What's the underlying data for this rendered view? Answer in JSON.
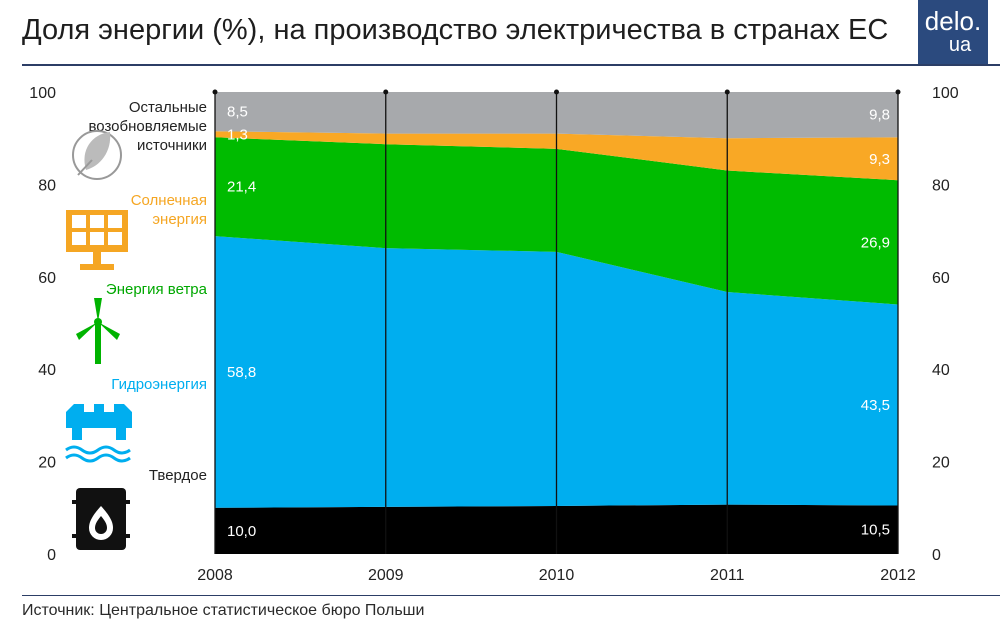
{
  "header": {
    "title": "Доля энергии (%), на производство электричества в странах ЕС",
    "logo_line1": "delo.",
    "logo_line2": "ua"
  },
  "footer": {
    "source": "Источник: Центральное статистическое бюро Польши"
  },
  "chart_data": {
    "type": "area",
    "stacked": true,
    "x": [
      "2008",
      "2009",
      "2010",
      "2011",
      "2012"
    ],
    "ylim": [
      0,
      100
    ],
    "yticks": [
      0,
      20,
      40,
      60,
      80,
      100
    ],
    "ytick_labels": [
      "0",
      "20",
      "40",
      "60",
      "80",
      "100"
    ],
    "y_axis_sides": [
      "left",
      "right"
    ],
    "grid": "vertical lines at each year",
    "series": [
      {
        "name": "Твердое",
        "color": "#000000",
        "label_color": "#222222",
        "icon": "oil-barrel-icon",
        "values": [
          10.0,
          10.2,
          10.4,
          10.7,
          10.5
        ]
      },
      {
        "name": "Гидроэнергия",
        "color": "#00aeef",
        "label_color": "#00aeef",
        "icon": "hydro-dam-icon",
        "values": [
          58.8,
          56.0,
          55.0,
          46.0,
          43.5
        ]
      },
      {
        "name": "Энергия ветра",
        "color": "#00bb00",
        "label_color": "#00a800",
        "icon": "wind-turbine-icon",
        "values": [
          21.4,
          22.5,
          22.3,
          26.3,
          26.9
        ]
      },
      {
        "name": "Солнечная энергия",
        "color": "#f9a825",
        "label_color": "#f5a623",
        "icon": "solar-panel-icon",
        "values": [
          1.3,
          2.3,
          3.3,
          7.0,
          9.3
        ]
      },
      {
        "name": "Остальные возобновляемые источники",
        "color": "#a7a9ac",
        "label_color": "#222222",
        "icon": "leaf-plug-icon",
        "values": [
          8.5,
          9.0,
          9.0,
          10.0,
          9.8
        ]
      }
    ],
    "data_labels": [
      {
        "series": 0,
        "at": "2008",
        "text": "10,0"
      },
      {
        "series": 0,
        "at": "2012",
        "text": "10,5"
      },
      {
        "series": 1,
        "at": "2008",
        "text": "58,8"
      },
      {
        "series": 1,
        "at": "2012",
        "text": "43,5"
      },
      {
        "series": 2,
        "at": "2008",
        "text": "21,4"
      },
      {
        "series": 2,
        "at": "2012",
        "text": "26,9"
      },
      {
        "series": 3,
        "at": "2008",
        "text": "1,3"
      },
      {
        "series": 3,
        "at": "2012",
        "text": "9,3"
      },
      {
        "series": 4,
        "at": "2008",
        "text": "8,5"
      },
      {
        "series": 4,
        "at": "2012",
        "text": "9,8"
      }
    ]
  }
}
